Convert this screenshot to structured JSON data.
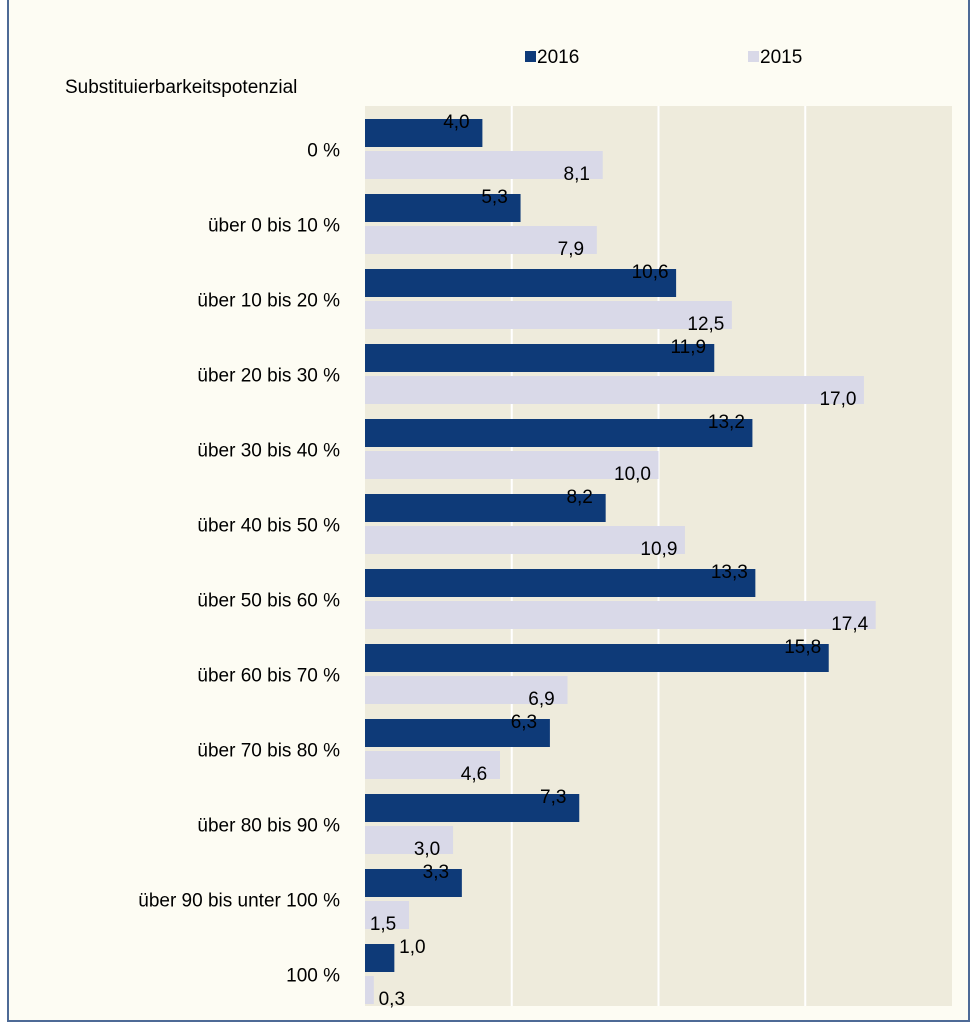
{
  "chart_data": {
    "type": "hbar",
    "y_axis_label": "Substituierbarkeitspotenzial",
    "categories": [
      "0 %",
      "über 0 bis 10 %",
      "über 10 bis 20 %",
      "über 20 bis 30 %",
      "über 30 bis 40 %",
      "über 40 bis 50 %",
      "über 50 bis 60 %",
      "über 60 bis 70 %",
      "über 70 bis 80 %",
      "über 80 bis 90 %",
      "über 90 bis unter 100 %",
      "100 %"
    ],
    "series": [
      {
        "name": "2016",
        "color": "#0e3a78",
        "label_color": "#ffffff",
        "values": [
          4.0,
          5.3,
          10.6,
          11.9,
          13.2,
          8.2,
          13.3,
          15.8,
          6.3,
          7.3,
          3.3,
          1.0
        ],
        "value_labels": [
          "4,0",
          "5,3",
          "10,6",
          "11,9",
          "13,2",
          "8,2",
          "13,3",
          "15,8",
          "6,3",
          "7,3",
          "3,3",
          "1,0"
        ]
      },
      {
        "name": "2015",
        "color": "#d9d9e8",
        "label_color": "#000000",
        "values": [
          8.1,
          7.9,
          12.5,
          17.0,
          10.0,
          10.9,
          17.4,
          6.9,
          4.6,
          3.0,
          1.5,
          0.3
        ],
        "value_labels": [
          "8,1",
          "7,9",
          "12,5",
          "17,0",
          "10,0",
          "10,9",
          "17,4",
          "6,9",
          "4,6",
          "3,0",
          "1,5",
          "0,3"
        ]
      }
    ],
    "xlim": [
      0,
      20
    ],
    "xticks": [
      0,
      5,
      10,
      15,
      20
    ],
    "grid": true,
    "legend": "top"
  }
}
